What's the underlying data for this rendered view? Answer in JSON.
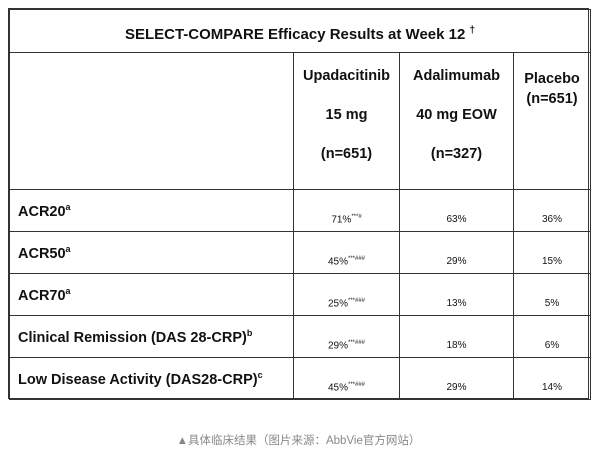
{
  "table": {
    "title": "SELECT-COMPARE Efficacy Results at Week 12",
    "title_mark": "†",
    "columns": [
      {
        "line1": "Upadacitinib",
        "line2": "15 mg",
        "line3": "(n=651)"
      },
      {
        "line1": "Adalimumab",
        "line2": "40 mg EOW",
        "line3": "(n=327)"
      },
      {
        "line1": "Placebo",
        "line2": "(n=651)"
      }
    ],
    "rows": [
      {
        "label": "ACR20",
        "label_sup": "a",
        "upa": "71%",
        "upa_sup": "***#",
        "ada": "63%",
        "pbo": "36%"
      },
      {
        "label": "ACR50",
        "label_sup": "a",
        "upa": "45%",
        "upa_sup": "***###",
        "ada": "29%",
        "pbo": "15%"
      },
      {
        "label": "ACR70",
        "label_sup": "a",
        "upa": "25%",
        "upa_sup": "***###",
        "ada": "13%",
        "pbo": "5%"
      },
      {
        "label": "Clinical Remission (DAS 28-CRP)",
        "label_sup": "b",
        "upa": "29%",
        "upa_sup": "***###",
        "ada": "18%",
        "pbo": "6%"
      },
      {
        "label": "Low Disease Activity (DAS28-CRP)",
        "label_sup": "c",
        "upa": "45%",
        "upa_sup": "***###",
        "ada": "29%",
        "pbo": "14%"
      }
    ]
  },
  "caption": "▲具体临床结果（图片来源：AbbVie官方网站）"
}
